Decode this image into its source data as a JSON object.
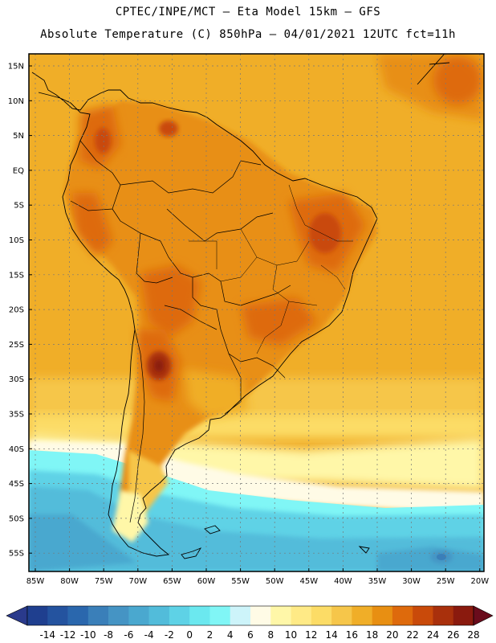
{
  "header": {
    "title_line1": "CPTEC/INPE/MCT —  Eta Model 15km — GFS",
    "title_line2": "Absolute Temperature (C) 850hPa — 04/01/2021 12UTC fct=11h"
  },
  "map": {
    "lat_labels": [
      "15N",
      "10N",
      "5N",
      "EQ",
      "5S",
      "10S",
      "15S",
      "20S",
      "25S",
      "30S",
      "35S",
      "40S",
      "45S",
      "50S",
      "55S"
    ],
    "lon_labels": [
      "85W",
      "80W",
      "75W",
      "70W",
      "65W",
      "60W",
      "55W",
      "50W",
      "45W",
      "40W",
      "35W",
      "30W",
      "25W",
      "20W"
    ],
    "gridlines": "dashed"
  },
  "colorbar": {
    "labels": [
      "-14",
      "-12",
      "-10",
      "-8",
      "-6",
      "-4",
      "-2",
      "0",
      "2",
      "4",
      "6",
      "8",
      "10",
      "12",
      "14",
      "16",
      "18",
      "20",
      "22",
      "24",
      "26",
      "28"
    ],
    "under_color": "#2a3a8c",
    "over_color": "#6a0c1c",
    "colors": [
      "#1f3f8f",
      "#24539f",
      "#2a67ad",
      "#3a7fb9",
      "#4594c4",
      "#4aa8cf",
      "#52bcda",
      "#5ed2e6",
      "#6be8ef",
      "#80f6f6",
      "#cdf4fa",
      "#fffbe6",
      "#fff7a8",
      "#ffea86",
      "#fcdc66",
      "#f6c64a",
      "#f0ae28",
      "#e88f12",
      "#de6a0c",
      "#c94a0a",
      "#a9300c",
      "#8a1a0e"
    ]
  }
}
